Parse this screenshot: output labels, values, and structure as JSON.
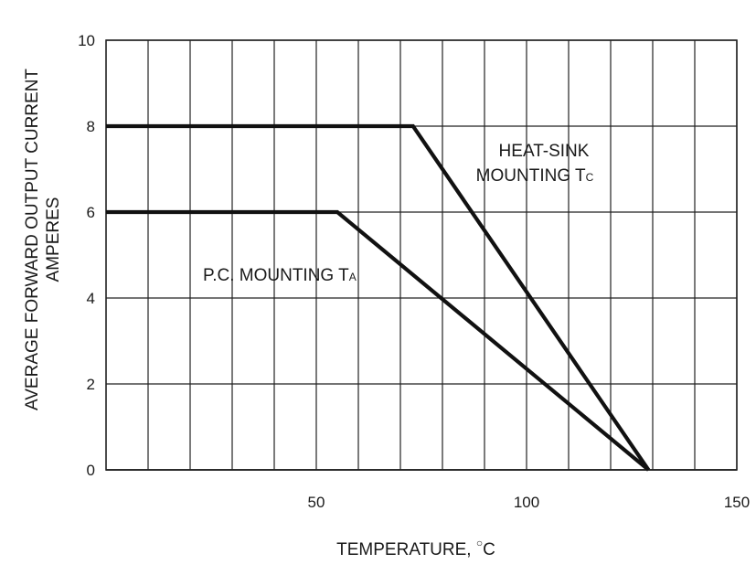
{
  "chart_data": {
    "type": "line",
    "xlabel_main": "TEMPERATURE, ",
    "xlabel_unit": "C",
    "ylabel_line1": "AVERAGE FORWARD OUTPUT CURRENT",
    "ylabel_line2": "AMPERES",
    "xlim": [
      0,
      150
    ],
    "ylim": [
      0,
      10
    ],
    "x_ticks": [
      50,
      100,
      150
    ],
    "y_ticks": [
      0,
      2,
      4,
      6,
      8,
      10
    ],
    "x_gridlines": [
      10,
      20,
      30,
      40,
      50,
      60,
      70,
      80,
      90,
      100,
      110,
      120,
      130,
      140,
      150
    ],
    "y_gridlines": [
      2,
      4,
      6,
      8,
      10
    ],
    "grid": true,
    "series": [
      {
        "annotation_main": "HEAT-SINK",
        "annotation_line2": "MOUNTING T",
        "annotation_sub": "C",
        "x": [
          0,
          73,
          129
        ],
        "y": [
          8,
          8,
          0
        ],
        "color": "#111111"
      },
      {
        "annotation_main": "P.C. MOUNTING T",
        "annotation_sub": "A",
        "x": [
          0,
          55,
          129
        ],
        "y": [
          6,
          6,
          0
        ],
        "color": "#111111"
      }
    ]
  }
}
